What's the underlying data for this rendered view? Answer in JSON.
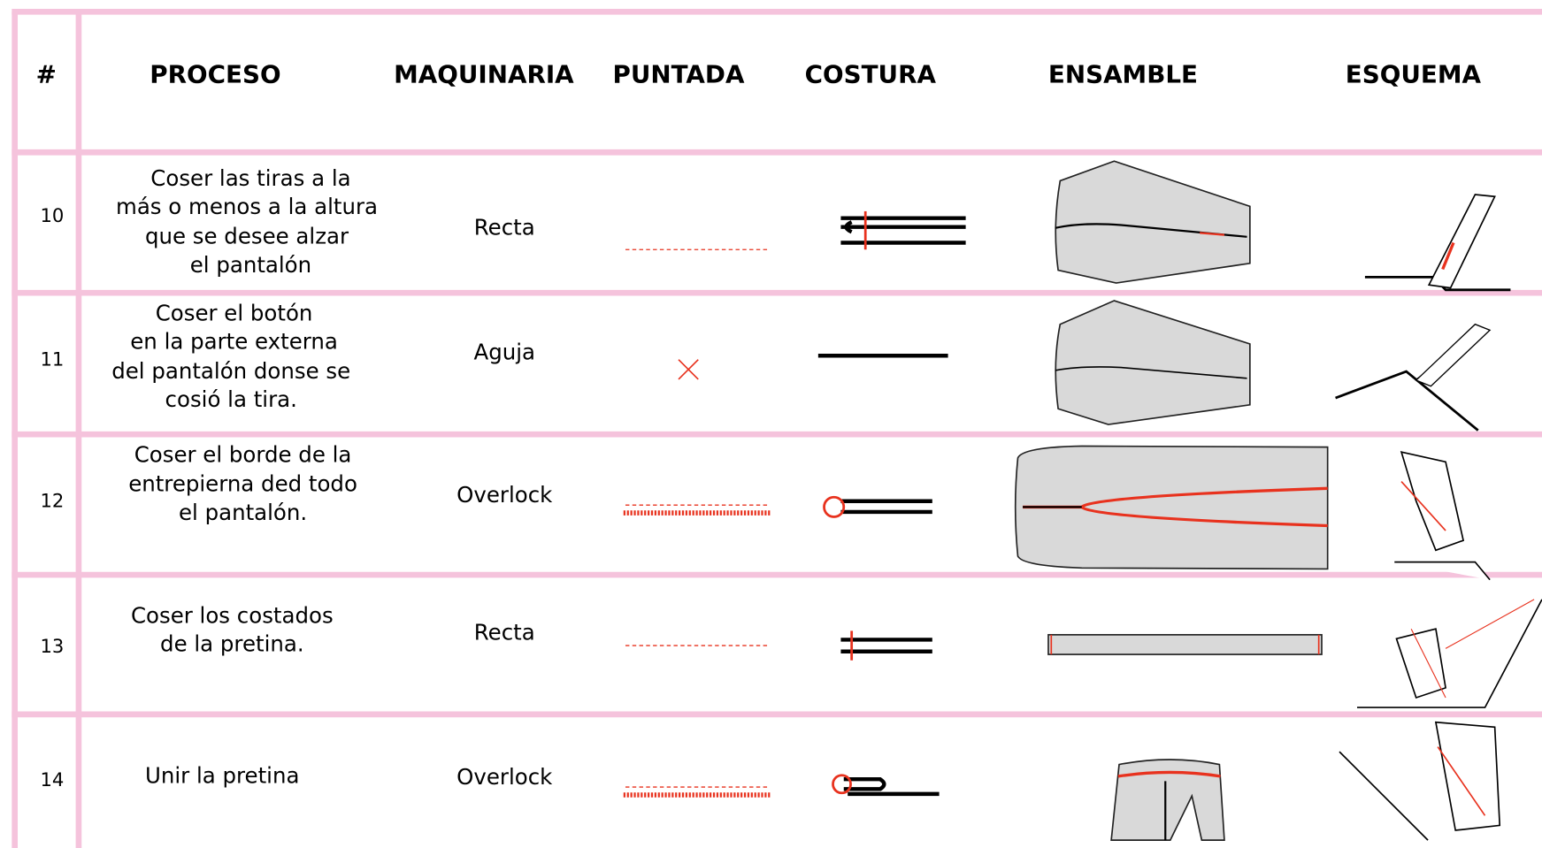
{
  "header": [
    "#",
    "PROCESO",
    "MAQUINARIA",
    "PUNTADA",
    "COSTURA",
    "ENSAMBLE",
    "ESQUEMA"
  ],
  "rows": [
    {
      "number": "10",
      "process": [
        "Coser las tiras a la",
        "más o menos a la altura",
        "que se desee alzar",
        "el pantalón"
      ],
      "machine": "Recta"
    },
    {
      "number": "11",
      "process": [
        "Coser el botón",
        "en la parte externa",
        "del pantalón donse se",
        "cosió la tira."
      ],
      "machine": "Aguja"
    },
    {
      "number": "12",
      "process": [
        "Coser el borde de la",
        "entrepierna ded todo",
        "el pantalón."
      ],
      "machine": "Overlock"
    },
    {
      "number": "13",
      "process": [
        "Coser los costados",
        "de la pretina."
      ],
      "machine": "Recta"
    },
    {
      "number": "14",
      "process": [
        "Unir la pretina"
      ],
      "machine": "Overlock"
    }
  ]
}
